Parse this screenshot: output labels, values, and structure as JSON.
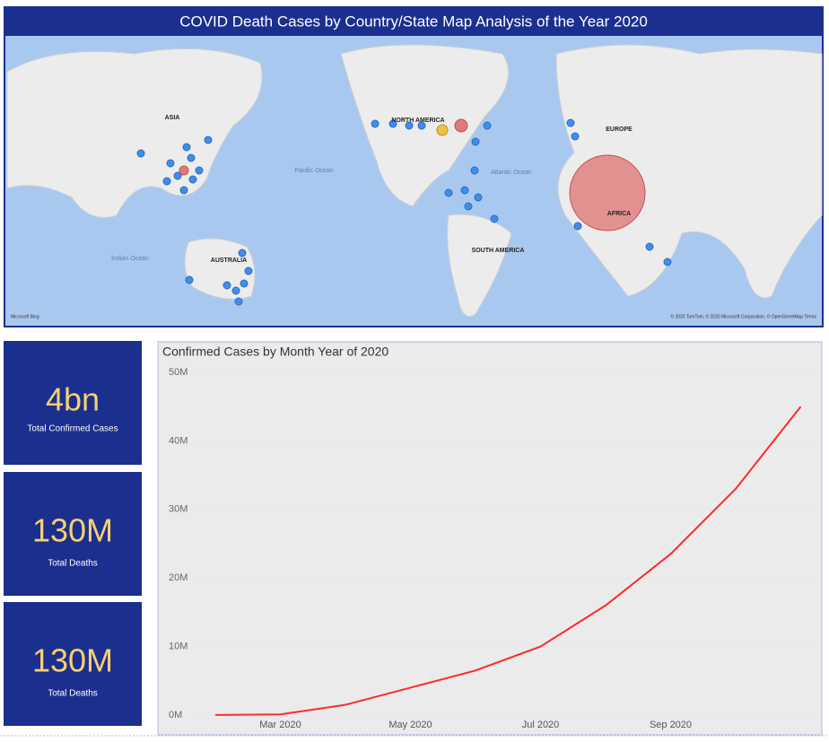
{
  "map": {
    "title": "COVID Death Cases by Country/State Map Analysis of the Year 2020",
    "labels": [
      "ASIA",
      "NORTH AMERICA",
      "EUROPE",
      "AFRICA",
      "SOUTH AMERICA",
      "AUSTRALIA"
    ],
    "oceans": [
      "Pacific Ocean",
      "Atlantic Ocean",
      "Indian Ocean"
    ],
    "attribution": "Microsoft Bing",
    "copyright": "© 2020 TomTom, © 2020 Microsoft Corporation, © OpenStreetMap  Terms"
  },
  "cards": [
    {
      "value": "4bn",
      "label": "Total Confirmed Cases"
    },
    {
      "value": "130M",
      "label": "Total Deaths"
    },
    {
      "value": "130M",
      "label": "Total Deaths"
    }
  ],
  "chart_data": {
    "type": "line",
    "title": "Confirmed Cases by Month Year of 2020",
    "x": [
      "Feb 2020",
      "Mar 2020",
      "Apr 2020",
      "May 2020",
      "Jun 2020",
      "Jul 2020",
      "Aug 2020",
      "Sep 2020",
      "Oct 2020",
      "Nov 2020"
    ],
    "xticks": [
      "Mar 2020",
      "May 2020",
      "Jul 2020",
      "Sep 2020"
    ],
    "series": [
      {
        "name": "Confirmed Cases",
        "color": "#ff2a2a",
        "values": [
          20000,
          100000,
          1500000,
          4000000,
          6500000,
          10000000,
          16000000,
          23500000,
          33000000,
          45000000
        ]
      }
    ],
    "ylim": [
      0,
      50000000
    ],
    "yticks": [
      {
        "value": 0,
        "label": "0M"
      },
      {
        "value": 10000000,
        "label": "10M"
      },
      {
        "value": 20000000,
        "label": "20M"
      },
      {
        "value": 30000000,
        "label": "30M"
      },
      {
        "value": 40000000,
        "label": "40M"
      },
      {
        "value": 50000000,
        "label": "50M"
      }
    ],
    "grid": true
  }
}
